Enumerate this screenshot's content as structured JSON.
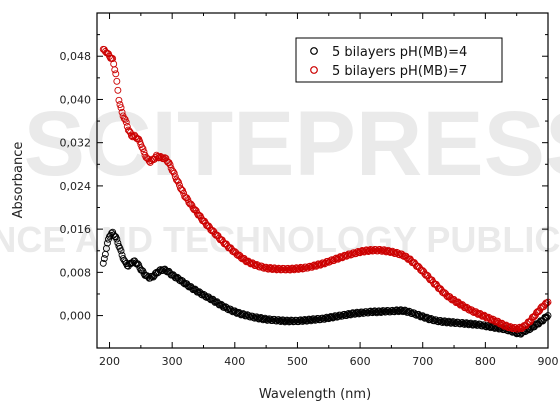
{
  "watermark": {
    "line1": "SCITEPRESS",
    "line2": "SCIENCE AND TECHNOLOGY PUBLICATIONS"
  },
  "chart_data": {
    "type": "scatter",
    "title": "",
    "xlabel": "Wavelength (nm)",
    "ylabel": "Absorbance",
    "xlim": [
      180,
      900
    ],
    "ylim": [
      -0.006,
      0.056
    ],
    "xticks": [
      "200",
      "300",
      "400",
      "500",
      "600",
      "700",
      "800",
      "900"
    ],
    "yticks": [
      "0,000",
      "0,008",
      "0,016",
      "0,024",
      "0,032",
      "0,040",
      "0,048"
    ],
    "grid": false,
    "legend_position": "top-right",
    "series": [
      {
        "name": "5 bilayers pH(MB)=4",
        "color": "#000000",
        "marker": "open-circle",
        "points": [
          [
            190,
            0.0095
          ],
          [
            195,
            0.0125
          ],
          [
            200,
            0.0148
          ],
          [
            205,
            0.0153
          ],
          [
            210,
            0.0145
          ],
          [
            215,
            0.013
          ],
          [
            220,
            0.0112
          ],
          [
            225,
            0.0098
          ],
          [
            230,
            0.0092
          ],
          [
            235,
            0.0098
          ],
          [
            240,
            0.01
          ],
          [
            245,
            0.0095
          ],
          [
            250,
            0.0086
          ],
          [
            255,
            0.0078
          ],
          [
            260,
            0.0072
          ],
          [
            265,
            0.007
          ],
          [
            270,
            0.0073
          ],
          [
            275,
            0.0079
          ],
          [
            280,
            0.0083
          ],
          [
            285,
            0.0085
          ],
          [
            290,
            0.0084
          ],
          [
            295,
            0.008
          ],
          [
            300,
            0.0075
          ],
          [
            310,
            0.0068
          ],
          [
            320,
            0.006
          ],
          [
            330,
            0.0052
          ],
          [
            340,
            0.0045
          ],
          [
            350,
            0.0038
          ],
          [
            360,
            0.0032
          ],
          [
            370,
            0.0025
          ],
          [
            380,
            0.0018
          ],
          [
            390,
            0.0012
          ],
          [
            400,
            0.0007
          ],
          [
            410,
            0.0003
          ],
          [
            420,
            0.0
          ],
          [
            430,
            -0.0003
          ],
          [
            440,
            -0.0005
          ],
          [
            450,
            -0.0007
          ],
          [
            460,
            -0.0008
          ],
          [
            470,
            -0.0009
          ],
          [
            480,
            -0.001
          ],
          [
            490,
            -0.001
          ],
          [
            500,
            -0.001
          ],
          [
            510,
            -0.0009
          ],
          [
            520,
            -0.0008
          ],
          [
            530,
            -0.0007
          ],
          [
            540,
            -0.0006
          ],
          [
            550,
            -0.0004
          ],
          [
            560,
            -0.0002
          ],
          [
            570,
            0.0
          ],
          [
            580,
            0.0002
          ],
          [
            590,
            0.0004
          ],
          [
            600,
            0.0005
          ],
          [
            610,
            0.0006
          ],
          [
            620,
            0.0007
          ],
          [
            630,
            0.0007
          ],
          [
            640,
            0.0008
          ],
          [
            650,
            0.0008
          ],
          [
            660,
            0.0009
          ],
          [
            670,
            0.0009
          ],
          [
            680,
            0.0006
          ],
          [
            690,
            0.0002
          ],
          [
            700,
            -0.0002
          ],
          [
            710,
            -0.0006
          ],
          [
            720,
            -0.0009
          ],
          [
            730,
            -0.0011
          ],
          [
            740,
            -0.0012
          ],
          [
            750,
            -0.0013
          ],
          [
            760,
            -0.0014
          ],
          [
            770,
            -0.0015
          ],
          [
            780,
            -0.0016
          ],
          [
            790,
            -0.0017
          ],
          [
            800,
            -0.0019
          ],
          [
            810,
            -0.0021
          ],
          [
            820,
            -0.0023
          ],
          [
            830,
            -0.0025
          ],
          [
            840,
            -0.0028
          ],
          [
            850,
            -0.0032
          ],
          [
            855,
            -0.0034
          ],
          [
            860,
            -0.003
          ],
          [
            870,
            -0.0025
          ],
          [
            880,
            -0.0018
          ],
          [
            890,
            -0.001
          ],
          [
            900,
            0.0
          ]
        ]
      },
      {
        "name": "5 bilayers pH(MB)=7",
        "color": "#cc0000",
        "marker": "open-circle",
        "points": [
          [
            190,
            0.0492
          ],
          [
            195,
            0.0488
          ],
          [
            200,
            0.048
          ],
          [
            205,
            0.0474
          ],
          [
            210,
            0.0448
          ],
          [
            215,
            0.04
          ],
          [
            220,
            0.0375
          ],
          [
            225,
            0.0362
          ],
          [
            230,
            0.0345
          ],
          [
            235,
            0.0333
          ],
          [
            240,
            0.0332
          ],
          [
            245,
            0.0328
          ],
          [
            250,
            0.0318
          ],
          [
            255,
            0.0302
          ],
          [
            260,
            0.029
          ],
          [
            265,
            0.0285
          ],
          [
            270,
            0.0289
          ],
          [
            275,
            0.0295
          ],
          [
            280,
            0.0293
          ],
          [
            285,
            0.0292
          ],
          [
            290,
            0.029
          ],
          [
            295,
            0.0282
          ],
          [
            300,
            0.027
          ],
          [
            310,
            0.0245
          ],
          [
            320,
            0.0222
          ],
          [
            330,
            0.0205
          ],
          [
            340,
            0.019
          ],
          [
            350,
            0.0175
          ],
          [
            360,
            0.0162
          ],
          [
            370,
            0.015
          ],
          [
            380,
            0.0138
          ],
          [
            390,
            0.0127
          ],
          [
            400,
            0.0117
          ],
          [
            410,
            0.0108
          ],
          [
            420,
            0.01
          ],
          [
            430,
            0.0095
          ],
          [
            440,
            0.0091
          ],
          [
            450,
            0.0088
          ],
          [
            460,
            0.0087
          ],
          [
            470,
            0.0086
          ],
          [
            480,
            0.0086
          ],
          [
            490,
            0.0086
          ],
          [
            500,
            0.0087
          ],
          [
            510,
            0.0088
          ],
          [
            520,
            0.009
          ],
          [
            530,
            0.0093
          ],
          [
            540,
            0.0096
          ],
          [
            550,
            0.01
          ],
          [
            560,
            0.0104
          ],
          [
            570,
            0.0108
          ],
          [
            580,
            0.0112
          ],
          [
            590,
            0.0115
          ],
          [
            600,
            0.0118
          ],
          [
            610,
            0.012
          ],
          [
            620,
            0.0121
          ],
          [
            630,
            0.0121
          ],
          [
            640,
            0.012
          ],
          [
            650,
            0.0118
          ],
          [
            660,
            0.0115
          ],
          [
            670,
            0.0111
          ],
          [
            680,
            0.0103
          ],
          [
            690,
            0.0093
          ],
          [
            700,
            0.0082
          ],
          [
            710,
            0.007
          ],
          [
            720,
            0.0058
          ],
          [
            730,
            0.0046
          ],
          [
            740,
            0.0036
          ],
          [
            750,
            0.0028
          ],
          [
            760,
            0.0021
          ],
          [
            770,
            0.0014
          ],
          [
            780,
            0.0008
          ],
          [
            790,
            0.0003
          ],
          [
            800,
            -0.0002
          ],
          [
            810,
            -0.0007
          ],
          [
            820,
            -0.0012
          ],
          [
            830,
            -0.0018
          ],
          [
            840,
            -0.0022
          ],
          [
            850,
            -0.0024
          ],
          [
            860,
            -0.0022
          ],
          [
            870,
            -0.0012
          ],
          [
            880,
            0.0002
          ],
          [
            890,
            0.0015
          ],
          [
            900,
            0.0025
          ]
        ]
      }
    ]
  }
}
